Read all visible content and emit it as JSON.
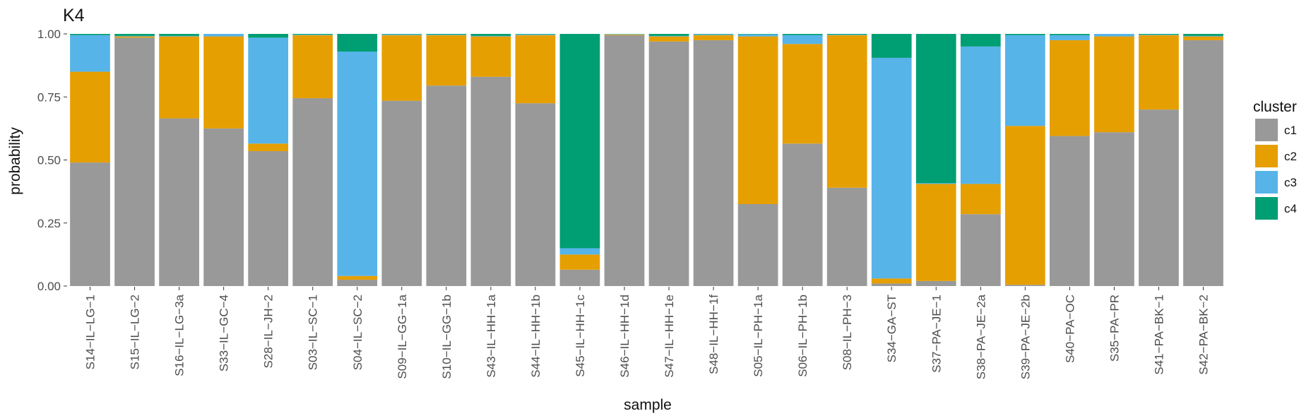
{
  "chart_data": {
    "type": "bar",
    "stacked": true,
    "title": "K4",
    "xlabel": "sample",
    "ylabel": "probability",
    "ylim": [
      0,
      1
    ],
    "yticks": [
      "0.00",
      "0.25",
      "0.50",
      "0.75",
      "1.00"
    ],
    "grid": false,
    "legend": {
      "title": "cluster",
      "position": "right"
    },
    "categories": [
      "S14−IL−LG−1",
      "S15−IL−LG−2",
      "S16−IL−LG−3a",
      "S33−IL−GC−4",
      "S28−IL−JH−2",
      "S03−IL−SC−1",
      "S04−IL−SC−2",
      "S09−IL−GG−1a",
      "S10−IL−GG−1b",
      "S43−IL−HH−1a",
      "S44−IL−HH−1b",
      "S45−IL−HH−1c",
      "S46−IL−HH−1d",
      "S47−IL−HH−1e",
      "S48−IL−HH−1f",
      "S05−IL−PH−1a",
      "S06−IL−PH−1b",
      "S08−IL−PH−3",
      "S34−GA−ST",
      "S37−PA−JE−1",
      "S38−PA−JE−2a",
      "S39−PA−JE−2b",
      "S40−PA−OC",
      "S35−PA−PR",
      "S41−PA−BK−1",
      "S42−PA−BK−2"
    ],
    "series": [
      {
        "name": "c1",
        "color": "#999999",
        "values": [
          0.49,
          0.985,
          0.665,
          0.625,
          0.535,
          0.745,
          0.025,
          0.735,
          0.795,
          0.83,
          0.725,
          0.065,
          0.995,
          0.97,
          0.975,
          0.325,
          0.565,
          0.39,
          0.01,
          0.02,
          0.285,
          0.005,
          0.595,
          0.61,
          0.7,
          0.975
        ]
      },
      {
        "name": "c2",
        "color": "#E69F00",
        "values": [
          0.36,
          0.005,
          0.325,
          0.365,
          0.03,
          0.25,
          0.015,
          0.26,
          0.2,
          0.16,
          0.27,
          0.06,
          0.003,
          0.02,
          0.02,
          0.665,
          0.395,
          0.605,
          0.02,
          0.385,
          0.12,
          0.63,
          0.38,
          0.38,
          0.295,
          0.015
        ]
      },
      {
        "name": "c3",
        "color": "#56B4E9",
        "values": [
          0.145,
          0.002,
          0.002,
          0.01,
          0.42,
          0.002,
          0.89,
          0.003,
          0.002,
          0.002,
          0.003,
          0.025,
          0.001,
          0.002,
          0.003,
          0.008,
          0.035,
          0.002,
          0.875,
          0.003,
          0.545,
          0.36,
          0.02,
          0.01,
          0.002,
          0.002
        ]
      },
      {
        "name": "c4",
        "color": "#009E73",
        "values": [
          0.005,
          0.008,
          0.008,
          0.0,
          0.015,
          0.003,
          0.07,
          0.002,
          0.003,
          0.008,
          0.002,
          0.85,
          0.001,
          0.008,
          0.002,
          0.002,
          0.005,
          0.003,
          0.095,
          0.592,
          0.05,
          0.005,
          0.005,
          0.0,
          0.003,
          0.008
        ]
      }
    ]
  }
}
